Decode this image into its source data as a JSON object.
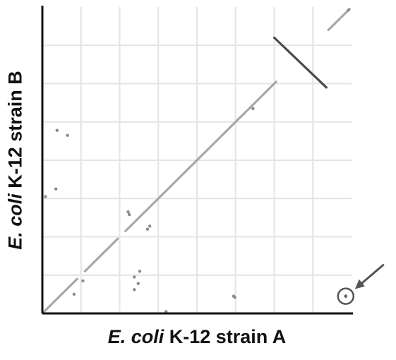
{
  "chart_data": {
    "type": "scatter",
    "title": "",
    "xlabel_italic": "E. coli",
    "xlabel_rest": " K-12 strain A",
    "ylabel_italic": "E. coli",
    "ylabel_rest": " K-12 strain B",
    "xlim": [
      0,
      8
    ],
    "ylim": [
      0,
      8
    ],
    "grid": true,
    "x_ticks": [
      1,
      2,
      3,
      4,
      5,
      6,
      7
    ],
    "y_ticks": [
      1,
      2,
      3,
      4,
      5,
      6,
      7
    ],
    "colors": {
      "forward": "#a8a8a8",
      "inverted": "#4a4a4a",
      "grid": "#e4e4e4",
      "axis": "#111111",
      "marker": "#555555"
    },
    "series": [
      {
        "segments": [
          [
            0.05,
            0.05,
            0.9,
            0.9
          ],
          [
            1.1,
            1.1,
            1.95,
            1.95
          ],
          [
            2.15,
            2.15,
            6.05,
            6.05
          ],
          [
            7.4,
            7.4,
            7.95,
            7.95
          ]
        ],
        "style": "forward"
      },
      {
        "segments": [
          [
            6.0,
            7.2,
            7.35,
            5.9
          ]
        ],
        "style": "inverted"
      }
    ],
    "points": [
      [
        0.38,
        4.78
      ],
      [
        0.65,
        4.65
      ],
      [
        0.35,
        3.25
      ],
      [
        0.08,
        3.05
      ],
      [
        2.22,
        2.65
      ],
      [
        2.25,
        2.58
      ],
      [
        2.78,
        2.28
      ],
      [
        2.72,
        2.2
      ],
      [
        1.05,
        0.85
      ],
      [
        0.82,
        0.5
      ],
      [
        2.38,
        0.95
      ],
      [
        2.52,
        1.1
      ],
      [
        2.48,
        0.78
      ],
      [
        2.38,
        0.62
      ],
      [
        4.95,
        0.45
      ],
      [
        4.98,
        0.42
      ],
      [
        3.2,
        0.05
      ],
      [
        5.45,
        5.35
      ],
      [
        7.92,
        7.92
      ]
    ],
    "annotation": {
      "type": "circle-arrow",
      "x": 7.85,
      "y": 0.45
    }
  }
}
